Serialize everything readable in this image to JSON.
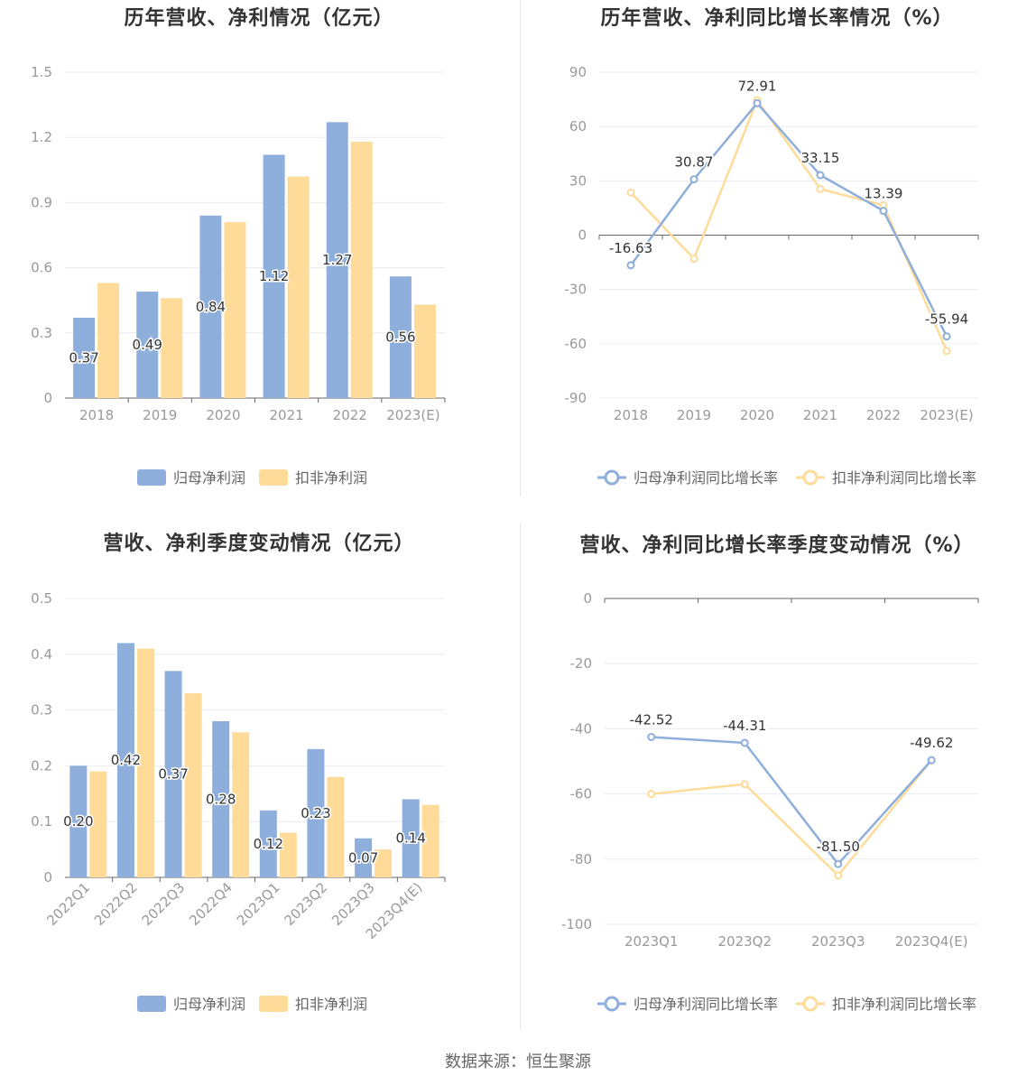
{
  "colors": {
    "blue": "#8eaedb",
    "orange": "#ffdb9a",
    "axis": "#666666",
    "grid": "#e9ecf2",
    "tick_text": "#999999"
  },
  "footer": "数据来源：恒生聚源",
  "chart_data": [
    {
      "type": "bar",
      "title": "历年营收、净利情况（亿元）",
      "categories": [
        "2018",
        "2019",
        "2020",
        "2021",
        "2022",
        "2023(E)"
      ],
      "y_ticks": [
        "0",
        "0.3",
        "0.6",
        "0.9",
        "1.2",
        "1.5"
      ],
      "ylim": [
        0,
        1.5
      ],
      "series": [
        {
          "name": "归母净利润",
          "values": [
            0.37,
            0.49,
            0.84,
            1.12,
            1.27,
            0.56
          ],
          "labels": [
            "0.37",
            "0.49",
            "0.84",
            "1.12",
            "1.27",
            "0.56"
          ]
        },
        {
          "name": "扣非净利润",
          "values": [
            0.53,
            0.46,
            0.81,
            1.02,
            1.18,
            0.43
          ]
        }
      ],
      "legend": "bottom",
      "grid": true
    },
    {
      "type": "line",
      "title": "历年营收、净利同比增长率情况（%）",
      "categories": [
        "2018",
        "2019",
        "2020",
        "2021",
        "2022",
        "2023(E)"
      ],
      "y_ticks": [
        "-90",
        "-60",
        "-30",
        "0",
        "30",
        "60",
        "90"
      ],
      "ylim": [
        -90,
        90
      ],
      "series": [
        {
          "name": "归母净利润同比增长率",
          "values": [
            -16.63,
            30.87,
            72.91,
            33.15,
            13.39,
            -55.94
          ],
          "labels": [
            "-16.63",
            "30.87",
            "72.91",
            "33.15",
            "13.39",
            "-55.94"
          ]
        },
        {
          "name": "扣非净利润同比增长率",
          "values": [
            23.5,
            -13,
            74.5,
            25.5,
            16.5,
            -64
          ]
        }
      ],
      "legend": "bottom",
      "grid": true
    },
    {
      "type": "bar",
      "title": "营收、净利季度变动情况（亿元）",
      "categories": [
        "2022Q1",
        "2022Q2",
        "2022Q3",
        "2022Q4",
        "2023Q1",
        "2023Q2",
        "2023Q3",
        "2023Q4(E)"
      ],
      "y_ticks": [
        "0",
        "0.1",
        "0.2",
        "0.3",
        "0.4",
        "0.5"
      ],
      "ylim": [
        0,
        0.5
      ],
      "series": [
        {
          "name": "归母净利润",
          "values": [
            0.2,
            0.42,
            0.37,
            0.28,
            0.12,
            0.23,
            0.07,
            0.14
          ],
          "labels": [
            "0.20",
            "0.42",
            "0.37",
            "0.28",
            "0.12",
            "0.23",
            "0.07",
            "0.14"
          ]
        },
        {
          "name": "扣非净利润",
          "values": [
            0.19,
            0.41,
            0.33,
            0.26,
            0.08,
            0.18,
            0.05,
            0.13
          ]
        }
      ],
      "legend": "bottom",
      "grid": true
    },
    {
      "type": "line",
      "title": "营收、净利同比增长率季度变动情况（%）",
      "categories": [
        "2023Q1",
        "2023Q2",
        "2023Q3",
        "2023Q4(E)"
      ],
      "y_ticks": [
        "-100",
        "-80",
        "-60",
        "-40",
        "-20",
        "0"
      ],
      "ylim": [
        -100,
        0
      ],
      "series": [
        {
          "name": "归母净利润同比增长率",
          "values": [
            -42.52,
            -44.31,
            -81.5,
            -49.62
          ],
          "labels": [
            "-42.52",
            "-44.31",
            "-81.50",
            "-49.62"
          ]
        },
        {
          "name": "扣非净利润同比增长率",
          "values": [
            -60,
            -57,
            -85,
            -49.62
          ]
        }
      ],
      "legend": "bottom",
      "grid": true
    }
  ]
}
